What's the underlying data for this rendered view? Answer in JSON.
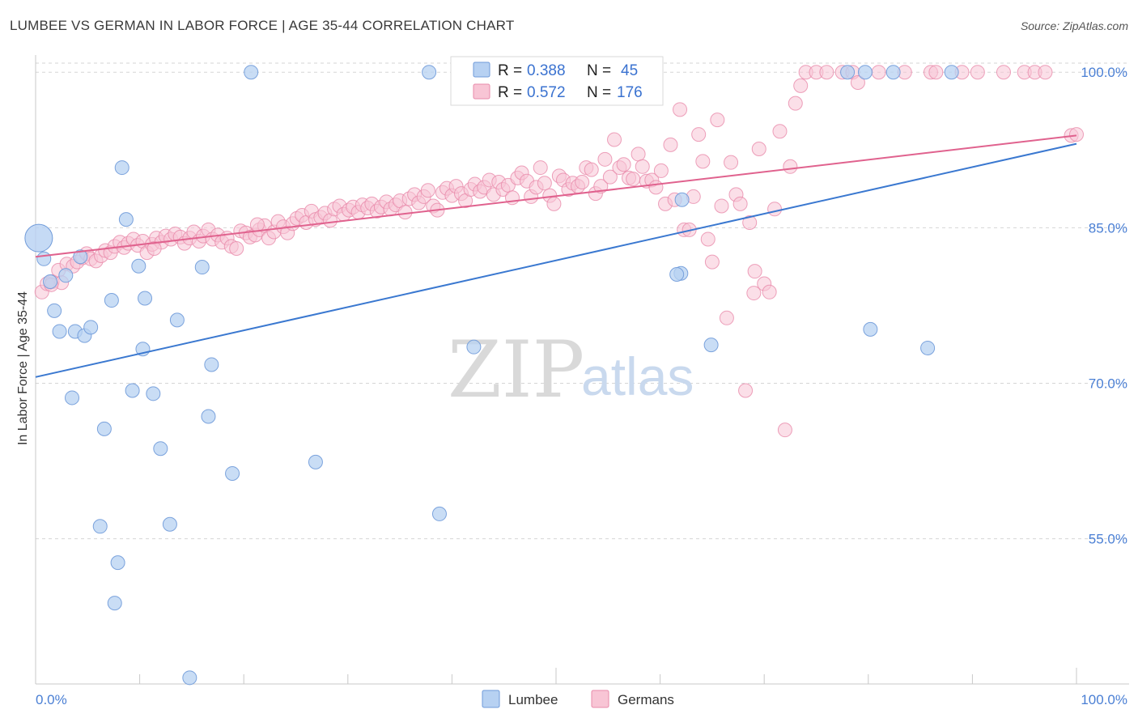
{
  "title": "LUMBEE VS GERMAN IN LABOR FORCE | AGE 35-44 CORRELATION CHART",
  "source": "Source: ZipAtlas.com",
  "watermark": {
    "zip": "ZIP",
    "atlas": "atlas"
  },
  "colors": {
    "lumbee_fill": "#b7d1f2",
    "lumbee_stroke": "#6f9ad9",
    "lumbee_line": "#3a78d0",
    "german_fill": "#f8c5d5",
    "german_stroke": "#e98aaa",
    "german_line": "#e0628e",
    "tick_label": "#4a7fd4",
    "grid": "#d5d5d5"
  },
  "legend_box": {
    "rows": [
      {
        "r_label": "R = ",
        "r_value": "0.388",
        "n_label": "N = ",
        "n_value": "45"
      },
      {
        "r_label": "R = ",
        "r_value": "0.572",
        "n_label": "N = ",
        "n_value": "176"
      }
    ]
  },
  "chart_data": {
    "type": "scatter",
    "title": "LUMBEE VS GERMAN IN LABOR FORCE | AGE 35-44 CORRELATION CHART",
    "xlabel": "",
    "ylabel": "In Labor Force | Age 35-44",
    "xlim": [
      0,
      100
    ],
    "ylim": [
      41,
      101.5
    ],
    "x_tick_labels": [
      "0.0%",
      "100.0%"
    ],
    "y_ticks": [
      55,
      70,
      85,
      100
    ],
    "y_tick_labels": [
      "55.0%",
      "70.0%",
      "85.0%",
      "100.0%"
    ],
    "grid": true,
    "legend_position": "bottom-center",
    "series": [
      {
        "name": "Lumbee",
        "r": 0.388,
        "n": 45,
        "trend": [
          [
            0,
            70.6
          ],
          [
            100,
            93.1
          ]
        ],
        "big_point": [
          0.3,
          84.0
        ],
        "points": [
          [
            0.8,
            82.0
          ],
          [
            1.4,
            79.8
          ],
          [
            1.8,
            77.0
          ],
          [
            2.3,
            75.0
          ],
          [
            2.9,
            80.4
          ],
          [
            3.5,
            68.6
          ],
          [
            3.8,
            75.0
          ],
          [
            4.3,
            82.2
          ],
          [
            4.7,
            74.6
          ],
          [
            5.3,
            75.4
          ],
          [
            6.2,
            56.2
          ],
          [
            6.6,
            65.6
          ],
          [
            7.3,
            78.0
          ],
          [
            7.9,
            52.7
          ],
          [
            8.3,
            90.8
          ],
          [
            8.7,
            85.8
          ],
          [
            9.3,
            69.3
          ],
          [
            9.9,
            81.3
          ],
          [
            10.3,
            73.3
          ],
          [
            10.5,
            78.2
          ],
          [
            11.3,
            69.0
          ],
          [
            12.0,
            63.7
          ],
          [
            12.9,
            56.4
          ],
          [
            13.6,
            76.1
          ],
          [
            16.0,
            81.2
          ],
          [
            16.6,
            66.8
          ],
          [
            16.9,
            71.8
          ],
          [
            18.9,
            61.3
          ],
          [
            20.7,
            100.0
          ],
          [
            26.9,
            62.4
          ],
          [
            37.8,
            100.0
          ],
          [
            38.8,
            57.4
          ],
          [
            42.1,
            73.5
          ],
          [
            62.1,
            87.7
          ],
          [
            62.0,
            80.6
          ],
          [
            64.9,
            73.7
          ],
          [
            78.0,
            100.0
          ],
          [
            80.2,
            75.2
          ],
          [
            79.7,
            100.0
          ],
          [
            85.7,
            73.4
          ],
          [
            61.6,
            80.5
          ],
          [
            7.6,
            48.8
          ],
          [
            14.8,
            41.6
          ],
          [
            88.0,
            100.0
          ],
          [
            82.4,
            100.0
          ]
        ]
      },
      {
        "name": "Germans",
        "r": 0.572,
        "n": 176,
        "trend": [
          [
            0,
            82.2
          ],
          [
            100,
            93.9
          ]
        ],
        "points": [
          [
            0.6,
            78.8
          ],
          [
            1.1,
            79.6
          ],
          [
            1.6,
            79.8
          ],
          [
            2.2,
            80.9
          ],
          [
            2.5,
            79.7
          ],
          [
            3.0,
            81.5
          ],
          [
            3.6,
            81.3
          ],
          [
            4.0,
            81.7
          ],
          [
            4.5,
            82.1
          ],
          [
            4.9,
            82.5
          ],
          [
            5.3,
            82.0
          ],
          [
            5.8,
            81.8
          ],
          [
            6.3,
            82.3
          ],
          [
            6.7,
            82.8
          ],
          [
            7.2,
            82.6
          ],
          [
            7.6,
            83.2
          ],
          [
            8.1,
            83.6
          ],
          [
            8.5,
            83.1
          ],
          [
            8.9,
            83.5
          ],
          [
            9.4,
            83.9
          ],
          [
            9.8,
            83.3
          ],
          [
            10.3,
            83.7
          ],
          [
            10.7,
            82.6
          ],
          [
            11.2,
            83.4
          ],
          [
            11.6,
            84.0
          ],
          [
            12.1,
            83.6
          ],
          [
            12.5,
            84.2
          ],
          [
            13.0,
            83.9
          ],
          [
            13.4,
            84.4
          ],
          [
            13.9,
            84.1
          ],
          [
            14.3,
            83.5
          ],
          [
            14.8,
            84.0
          ],
          [
            15.2,
            84.6
          ],
          [
            15.7,
            83.7
          ],
          [
            16.1,
            84.2
          ],
          [
            16.6,
            84.8
          ],
          [
            17.0,
            83.9
          ],
          [
            17.5,
            84.3
          ],
          [
            17.9,
            83.6
          ],
          [
            18.4,
            84.0
          ],
          [
            18.8,
            83.2
          ],
          [
            19.3,
            83.0
          ],
          [
            19.7,
            84.7
          ],
          [
            20.2,
            84.5
          ],
          [
            20.6,
            84.1
          ],
          [
            21.1,
            84.3
          ],
          [
            21.5,
            84.8
          ],
          [
            22.0,
            85.2
          ],
          [
            22.4,
            84.0
          ],
          [
            22.9,
            84.6
          ],
          [
            23.3,
            85.6
          ],
          [
            23.8,
            85.1
          ],
          [
            24.2,
            84.5
          ],
          [
            24.7,
            85.4
          ],
          [
            25.1,
            85.9
          ],
          [
            25.6,
            86.2
          ],
          [
            26.0,
            85.5
          ],
          [
            26.5,
            86.6
          ],
          [
            26.9,
            85.8
          ],
          [
            27.4,
            86.0
          ],
          [
            27.8,
            86.4
          ],
          [
            28.3,
            85.7
          ],
          [
            28.7,
            86.8
          ],
          [
            29.2,
            87.1
          ],
          [
            29.6,
            86.3
          ],
          [
            30.1,
            86.7
          ],
          [
            30.5,
            87.0
          ],
          [
            31.0,
            86.5
          ],
          [
            31.4,
            87.2
          ],
          [
            31.9,
            86.9
          ],
          [
            32.3,
            87.3
          ],
          [
            32.8,
            86.6
          ],
          [
            33.2,
            87.0
          ],
          [
            33.7,
            87.5
          ],
          [
            34.1,
            86.8
          ],
          [
            34.6,
            87.2
          ],
          [
            35.0,
            87.6
          ],
          [
            35.5,
            86.5
          ],
          [
            35.9,
            87.8
          ],
          [
            36.4,
            88.2
          ],
          [
            36.8,
            87.4
          ],
          [
            37.3,
            88.0
          ],
          [
            37.7,
            88.6
          ],
          [
            38.2,
            87.1
          ],
          [
            38.6,
            86.7
          ],
          [
            39.1,
            88.4
          ],
          [
            39.5,
            88.8
          ],
          [
            40.0,
            88.1
          ],
          [
            40.4,
            89.0
          ],
          [
            40.9,
            88.3
          ],
          [
            41.3,
            87.6
          ],
          [
            41.8,
            88.7
          ],
          [
            42.2,
            89.2
          ],
          [
            42.7,
            88.5
          ],
          [
            43.1,
            88.9
          ],
          [
            43.6,
            89.6
          ],
          [
            44.0,
            88.2
          ],
          [
            44.5,
            89.4
          ],
          [
            44.9,
            88.7
          ],
          [
            45.4,
            89.1
          ],
          [
            45.8,
            87.9
          ],
          [
            46.3,
            89.8
          ],
          [
            46.7,
            90.3
          ],
          [
            47.2,
            89.5
          ],
          [
            47.6,
            88.0
          ],
          [
            48.1,
            88.9
          ],
          [
            48.5,
            90.8
          ],
          [
            48.9,
            89.3
          ],
          [
            49.4,
            88.1
          ],
          [
            49.8,
            87.3
          ],
          [
            50.3,
            90.0
          ],
          [
            50.7,
            89.6
          ],
          [
            51.2,
            88.7
          ],
          [
            51.6,
            89.3
          ],
          [
            52.1,
            89.0
          ],
          [
            52.5,
            89.4
          ],
          [
            52.9,
            90.8
          ],
          [
            53.4,
            90.6
          ],
          [
            53.8,
            88.3
          ],
          [
            54.3,
            89.0
          ],
          [
            54.7,
            91.6
          ],
          [
            55.2,
            89.9
          ],
          [
            55.6,
            93.5
          ],
          [
            56.1,
            90.8
          ],
          [
            56.5,
            91.1
          ],
          [
            57.0,
            89.8
          ],
          [
            57.4,
            89.7
          ],
          [
            57.9,
            92.1
          ],
          [
            58.3,
            90.9
          ],
          [
            58.7,
            89.5
          ],
          [
            59.2,
            89.6
          ],
          [
            59.6,
            88.9
          ],
          [
            60.1,
            90.5
          ],
          [
            60.5,
            87.3
          ],
          [
            61.0,
            93.0
          ],
          [
            61.4,
            87.7
          ],
          [
            61.9,
            96.4
          ],
          [
            62.3,
            84.8
          ],
          [
            62.8,
            84.8
          ],
          [
            63.2,
            88.0
          ],
          [
            63.7,
            94.0
          ],
          [
            64.1,
            91.4
          ],
          [
            64.6,
            83.9
          ],
          [
            65.0,
            81.7
          ],
          [
            65.5,
            95.4
          ],
          [
            65.9,
            87.1
          ],
          [
            66.4,
            76.3
          ],
          [
            66.8,
            91.3
          ],
          [
            67.3,
            88.2
          ],
          [
            67.7,
            87.3
          ],
          [
            68.2,
            69.3
          ],
          [
            68.6,
            85.5
          ],
          [
            69.1,
            80.8
          ],
          [
            69.5,
            92.6
          ],
          [
            70.0,
            79.6
          ],
          [
            70.5,
            78.8
          ],
          [
            71.0,
            86.8
          ],
          [
            71.5,
            94.3
          ],
          [
            72.0,
            65.5
          ],
          [
            72.5,
            90.9
          ],
          [
            73.0,
            97.0
          ],
          [
            73.5,
            98.7
          ],
          [
            74.0,
            100.0
          ],
          [
            75.0,
            100.0
          ],
          [
            76.0,
            100.0
          ],
          [
            77.5,
            100.0
          ],
          [
            78.5,
            100.0
          ],
          [
            79.0,
            99.0
          ],
          [
            81.0,
            100.0
          ],
          [
            83.5,
            100.0
          ],
          [
            86.0,
            100.0
          ],
          [
            86.5,
            100.0
          ],
          [
            89.0,
            100.0
          ],
          [
            90.5,
            100.0
          ],
          [
            93.0,
            100.0
          ],
          [
            95.0,
            100.0
          ],
          [
            96.0,
            100.0
          ],
          [
            97.0,
            100.0
          ],
          [
            99.5,
            93.9
          ],
          [
            100.0,
            94.0
          ],
          [
            1.5,
            79.5
          ],
          [
            11.4,
            83.0
          ],
          [
            21.3,
            85.3
          ],
          [
            69.0,
            78.7
          ]
        ]
      }
    ]
  }
}
